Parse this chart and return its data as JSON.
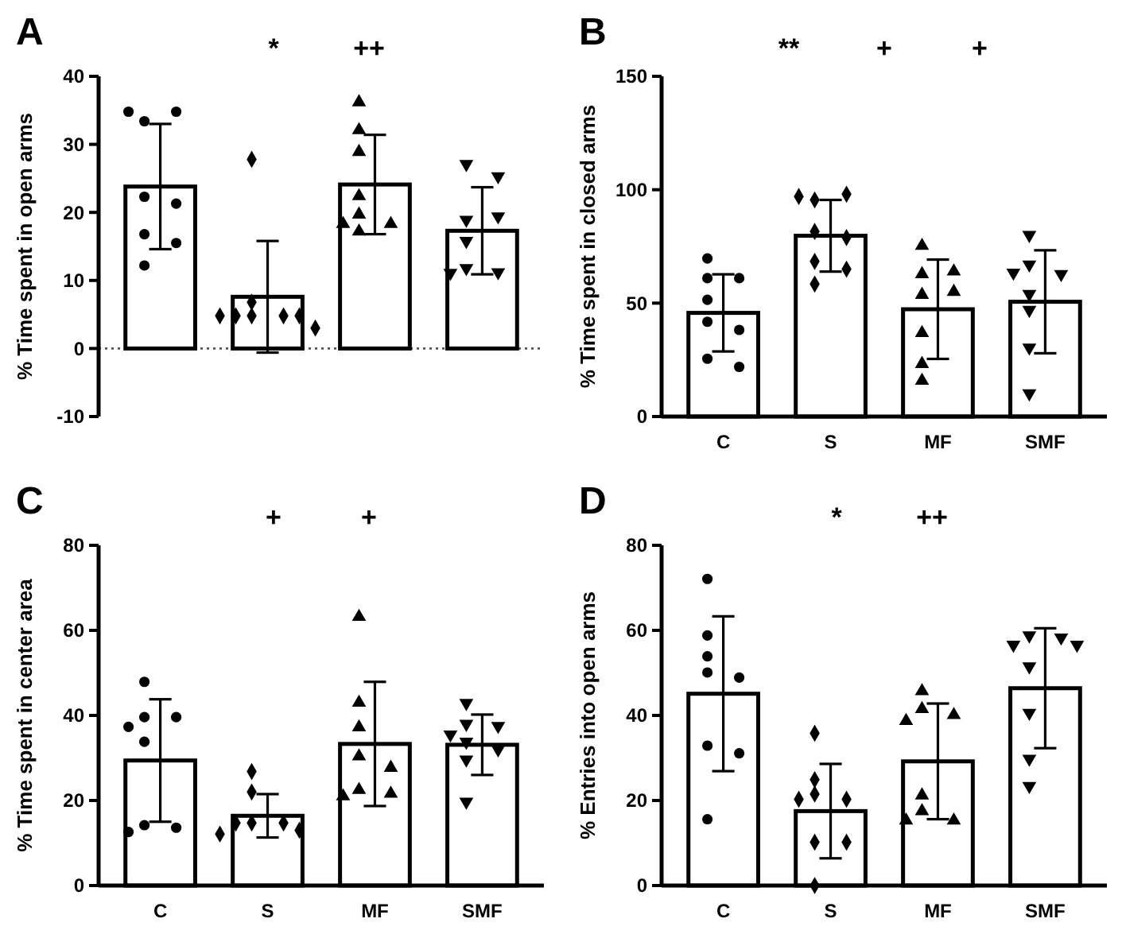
{
  "chart_data": [
    {
      "type": "bar",
      "title": "A",
      "ylabel": "% Time spent in open arms",
      "categories": [
        "C",
        "S",
        "MF",
        "SMF"
      ],
      "tick_labels": "y",
      "ylim": [
        -10,
        40
      ],
      "yticks": [
        -10,
        0,
        10,
        20,
        30,
        40
      ],
      "ref_lines": [
        {
          "axis": "y",
          "value": 0,
          "line_style": "dotted",
          "color": "#555555"
        }
      ],
      "series": [
        {
          "type": "bar",
          "color": "#ffffff",
          "values": [
            23.8,
            7.6,
            24.1,
            17.3
          ],
          "errors": [
            9.2,
            8.2,
            7.3,
            6.4
          ]
        },
        {
          "type": "scatter",
          "marker": "circle",
          "color": "#000000",
          "x": [
            "C",
            "C",
            "C",
            "C",
            "C",
            "C",
            "C",
            "C"
          ],
          "values": [
            33.4,
            34.8,
            34.8,
            22.3,
            21.3,
            16.8,
            15.5,
            12.2
          ]
        },
        {
          "type": "scatter",
          "marker": "diamond",
          "color": "#000000",
          "x": [
            "S",
            "S",
            "S",
            "S",
            "S",
            "S",
            "S",
            "S"
          ],
          "values": [
            27.8,
            6.8,
            4.8,
            4.8,
            4.8,
            4.8,
            4.8,
            3.0
          ]
        },
        {
          "type": "scatter",
          "marker": "triangle",
          "color": "#000000",
          "x": [
            "MF",
            "MF",
            "MF",
            "MF",
            "MF",
            "MF",
            "MF",
            "MF"
          ],
          "values": [
            36.2,
            32.1,
            28.9,
            22.4,
            19.7,
            18.3,
            18.3,
            17.2
          ]
        },
        {
          "type": "scatter",
          "marker": "triangle-down",
          "color": "#000000",
          "x": [
            "SMF",
            "SMF",
            "SMF",
            "SMF",
            "SMF",
            "SMF",
            "SMF",
            "SMF"
          ],
          "values": [
            27.1,
            25.3,
            18.9,
            19.4,
            15.8,
            11.8,
            11.2,
            11.1
          ]
        }
      ],
      "annotations": [
        "*",
        "++"
      ]
    },
    {
      "type": "bar",
      "title": "B",
      "ylabel": "% Time spent in closed arms",
      "categories": [
        "C",
        "S",
        "MF",
        "SMF"
      ],
      "ylim": [
        0,
        150
      ],
      "yticks": [
        0,
        50,
        100,
        150
      ],
      "series": [
        {
          "type": "bar",
          "color": "#ffffff",
          "values": [
            45.7,
            79.7,
            47.3,
            50.6
          ],
          "errors": [
            17,
            15.8,
            21.9,
            22.7
          ]
        },
        {
          "type": "scatter",
          "marker": "circle",
          "color": "#000000",
          "x": [
            "C",
            "C",
            "C",
            "C",
            "C",
            "C",
            "C",
            "C"
          ],
          "values": [
            69.7,
            61,
            61,
            51.5,
            41.8,
            38.2,
            25.5,
            21.9
          ]
        },
        {
          "type": "scatter",
          "marker": "diamond",
          "color": "#000000",
          "x": [
            "S",
            "S",
            "S",
            "S",
            "S",
            "S",
            "S",
            "S"
          ],
          "values": [
            95.5,
            98,
            97,
            81.6,
            78.9,
            68.4,
            65,
            58.4
          ]
        },
        {
          "type": "scatter",
          "marker": "triangle",
          "color": "#000000",
          "x": [
            "MF",
            "MF",
            "MF",
            "MF",
            "MF",
            "MF",
            "MF",
            "MF"
          ],
          "values": [
            75.3,
            62.8,
            64,
            53.7,
            55,
            36.8,
            23.2,
            15.8
          ]
        },
        {
          "type": "scatter",
          "marker": "triangle-down",
          "color": "#000000",
          "x": [
            "SMF",
            "SMF",
            "SMF",
            "SMF",
            "SMF",
            "SMF",
            "SMF",
            "SMF"
          ],
          "values": [
            80,
            67,
            62.8,
            63.4,
            54,
            47,
            30.4,
            10.2
          ]
        }
      ],
      "annotations": [
        "**",
        "+",
        "+"
      ]
    },
    {
      "type": "bar",
      "title": "C",
      "ylabel": "% Time spent in center area",
      "categories": [
        "C",
        "S",
        "MF",
        "SMF"
      ],
      "ylim": [
        0,
        80
      ],
      "yticks": [
        0,
        20,
        40,
        60,
        80
      ],
      "series": [
        {
          "type": "bar",
          "color": "#ffffff",
          "values": [
            29.4,
            16.4,
            33.3,
            33.1
          ],
          "errors": [
            14.4,
            5.1,
            14.6,
            7.1
          ]
        },
        {
          "type": "scatter",
          "marker": "circle",
          "color": "#000000",
          "x": [
            "C",
            "C",
            "C",
            "C",
            "C",
            "C",
            "C",
            "C"
          ],
          "values": [
            47.9,
            39.6,
            39.6,
            37.3,
            33.8,
            14.2,
            13.6,
            12.6
          ]
        },
        {
          "type": "scatter",
          "marker": "diamond",
          "color": "#000000",
          "x": [
            "S",
            "S",
            "S",
            "S",
            "S",
            "S",
            "S"
          ],
          "values": [
            26.8,
            22,
            14.7,
            14.7,
            14.7,
            13,
            12.1
          ]
        },
        {
          "type": "scatter",
          "marker": "triangle",
          "color": "#000000",
          "x": [
            "MF",
            "MF",
            "MF",
            "MF",
            "MF",
            "MF",
            "MF",
            "MF"
          ],
          "values": [
            63.2,
            43,
            37.2,
            30.4,
            27.7,
            22.5,
            21.6,
            21
          ]
        },
        {
          "type": "scatter",
          "marker": "triangle-down",
          "color": "#000000",
          "x": [
            "SMF",
            "SMF",
            "SMF",
            "SMF",
            "SMF",
            "SMF",
            "SMF",
            "SMF"
          ],
          "values": [
            42.9,
            38,
            37.5,
            35.5,
            33.8,
            32,
            29.6,
            19.7
          ]
        }
      ],
      "annotations": [
        "+",
        "+"
      ]
    },
    {
      "type": "bar",
      "title": "D",
      "ylabel": "% Entries into open arms",
      "categories": [
        "C",
        "S",
        "MF",
        "SMF"
      ],
      "ylim": [
        0,
        80
      ],
      "yticks": [
        0,
        20,
        40,
        60,
        80
      ],
      "series": [
        {
          "type": "bar",
          "color": "#ffffff",
          "values": [
            45.1,
            17.5,
            29.2,
            46.4
          ],
          "errors": [
            18.2,
            11.1,
            13.6,
            14.1
          ]
        },
        {
          "type": "scatter",
          "marker": "circle",
          "color": "#000000",
          "x": [
            "C",
            "C",
            "C",
            "C",
            "C",
            "C",
            "C",
            "C"
          ],
          "values": [
            72.1,
            58.8,
            53.9,
            50.1,
            48.9,
            32.9,
            31.1,
            15.6
          ]
        },
        {
          "type": "scatter",
          "marker": "diamond",
          "color": "#000000",
          "x": [
            "S",
            "S",
            "S",
            "S",
            "S",
            "S",
            "S",
            "S"
          ],
          "values": [
            35.8,
            24.9,
            21.5,
            20.3,
            20.3,
            10.2,
            10.2,
            0
          ]
        },
        {
          "type": "scatter",
          "marker": "triangle",
          "color": "#000000",
          "x": [
            "MF",
            "MF",
            "MF",
            "MF",
            "MF",
            "MF",
            "MF",
            "MF"
          ],
          "values": [
            45.7,
            41.5,
            40.1,
            38.7,
            21.2,
            17.5,
            15.3,
            15.3
          ]
        },
        {
          "type": "scatter",
          "marker": "triangle-down",
          "color": "#000000",
          "x": [
            "SMF",
            "SMF",
            "SMF",
            "SMF",
            "SMF",
            "SMF",
            "SMF",
            "SMF"
          ],
          "values": [
            58.8,
            58.3,
            56.6,
            56.6,
            51.5,
            40.6,
            29.8,
            23.4
          ]
        }
      ],
      "annotations": [
        "*",
        "++"
      ]
    }
  ]
}
